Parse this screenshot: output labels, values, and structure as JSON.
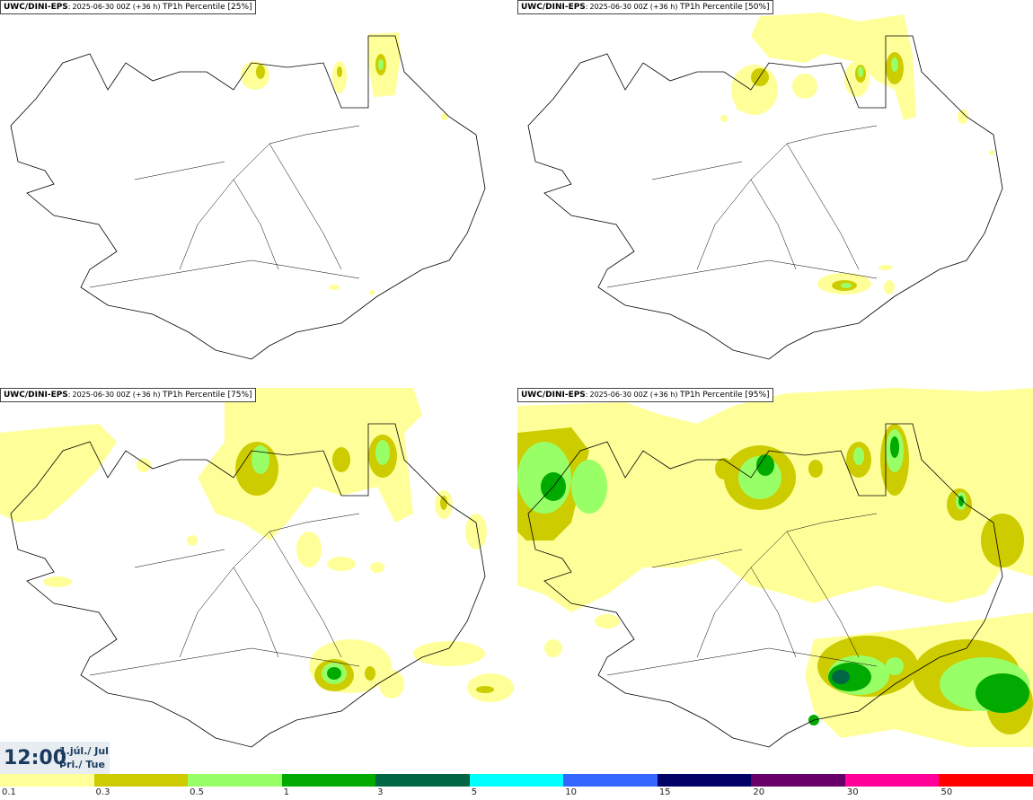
{
  "panels": [
    {
      "model": "UWC/DINI-EPS",
      "run": "2025-06-30 00Z (+36 h)",
      "param": "TP1h Percentile [25%]"
    },
    {
      "model": "UWC/DINI-EPS",
      "run": "2025-06-30 00Z (+36 h)",
      "param": "TP1h Percentile [50%]"
    },
    {
      "model": "UWC/DINI-EPS",
      "run": "2025-06-30 00Z (+36 h)",
      "param": "TP1h Percentile [75%]"
    },
    {
      "model": "UWC/DINI-EPS",
      "run": "2025-06-30 00Z (+36 h)",
      "param": "TP1h Percentile [95%]"
    }
  ],
  "valid": {
    "time": "12:00",
    "date": "1.júl./ Jul",
    "day": "Þri./ Tue"
  },
  "legend": {
    "colors": [
      "#ffff99",
      "#cccc00",
      "#99ff66",
      "#00aa00",
      "#006644",
      "#00ffff",
      "#3366ff",
      "#000066",
      "#660066",
      "#ff0099",
      "#ff0000"
    ],
    "labels": [
      "0.1",
      "0.3",
      "0.5",
      "1",
      "3",
      "5",
      "10",
      "15",
      "20",
      "30",
      "50"
    ]
  }
}
